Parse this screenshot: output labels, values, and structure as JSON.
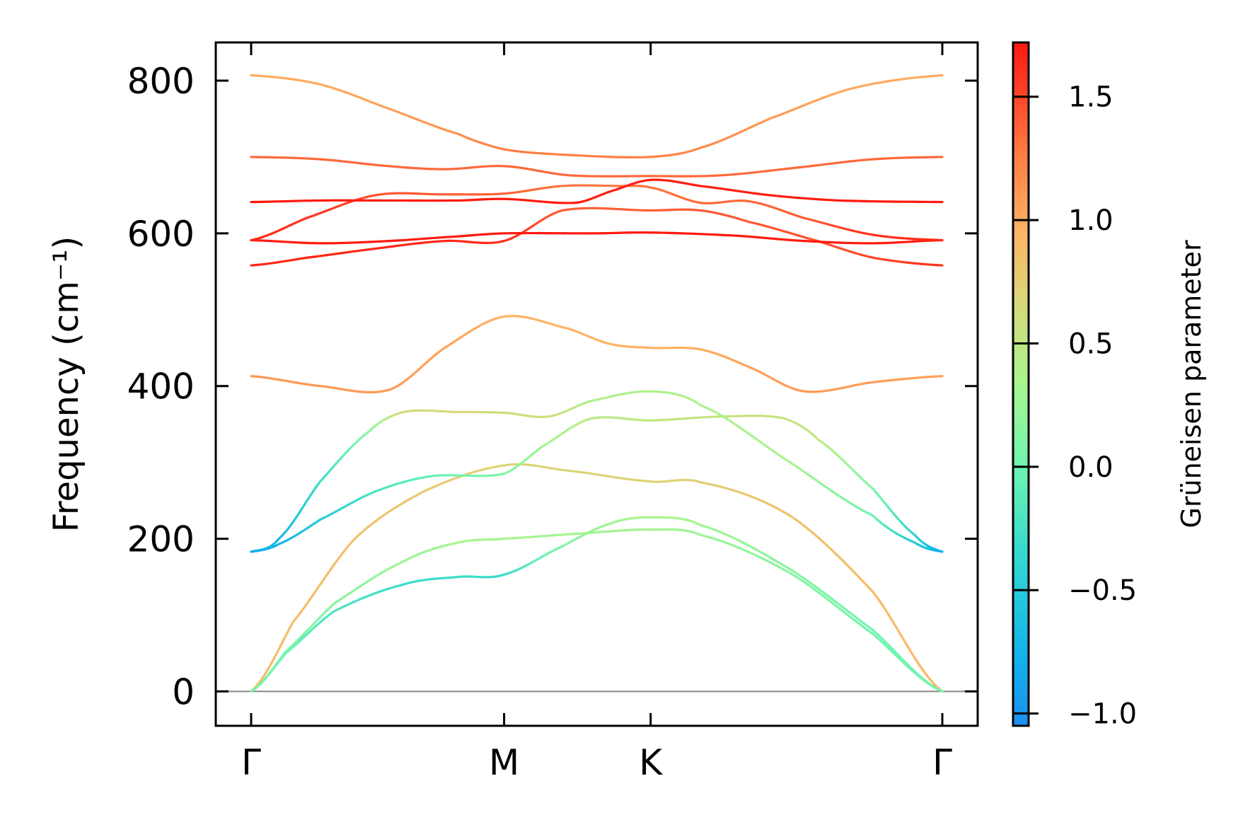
{
  "chart_data": {
    "type": "line",
    "title": "",
    "xlabel": "",
    "ylabel": "Frequency (cm⁻¹)",
    "ylim": [
      -45,
      850
    ],
    "yticks": [
      0,
      200,
      400,
      600,
      800
    ],
    "ytick_labels": [
      "0",
      "200",
      "400",
      "600",
      "800"
    ],
    "zero_line": true,
    "grid": false,
    "x_points": [
      {
        "label": "Γ",
        "x": 0.0
      },
      {
        "label": "M",
        "x": 0.366
      },
      {
        "label": "K",
        "x": 0.578
      },
      {
        "label": "Γ",
        "x": 1.0
      }
    ],
    "colorbar": {
      "label": "Grüneisen parameter",
      "colormap": "rainbow",
      "range": [
        -1.05,
        1.72
      ],
      "ticks": [
        -1.0,
        -0.5,
        0.0,
        0.5,
        1.0,
        1.5
      ],
      "tick_labels": [
        "−1.0",
        "−0.5",
        "0.0",
        "0.5",
        "1.0",
        "1.5"
      ]
    },
    "series": [
      {
        "points": [
          [
            0,
            0,
            0.9
          ],
          [
            0.06,
            90,
            0.88
          ],
          [
            0.15,
            200,
            0.85
          ],
          [
            0.25,
            262,
            0.8
          ],
          [
            0.366,
            296,
            0.7
          ],
          [
            0.45,
            290,
            0.7
          ],
          [
            0.578,
            275,
            0.7
          ],
          [
            0.65,
            274,
            0.72
          ],
          [
            0.78,
            230,
            0.85
          ],
          [
            0.9,
            130,
            0.9
          ],
          [
            1.0,
            0,
            0.92
          ]
        ]
      },
      {
        "points": [
          [
            0,
            0,
            0.02
          ],
          [
            0.05,
            50,
            -0.05
          ],
          [
            0.12,
            105,
            -0.2
          ],
          [
            0.22,
            140,
            -0.3
          ],
          [
            0.3,
            150,
            -0.3
          ],
          [
            0.366,
            153,
            -0.32
          ],
          [
            0.45,
            190,
            0.1
          ],
          [
            0.52,
            220,
            0.3
          ],
          [
            0.578,
            228,
            0.35
          ],
          [
            0.65,
            218,
            0.3
          ],
          [
            0.78,
            160,
            0.15
          ],
          [
            0.9,
            80,
            0.0
          ],
          [
            1.0,
            0,
            -0.02
          ]
        ]
      },
      {
        "points": [
          [
            0,
            0,
            0.05
          ],
          [
            0.05,
            52,
            0.05
          ],
          [
            0.12,
            115,
            0.15
          ],
          [
            0.22,
            170,
            0.25
          ],
          [
            0.3,
            195,
            0.32
          ],
          [
            0.366,
            200,
            0.32
          ],
          [
            0.48,
            207,
            0.3
          ],
          [
            0.578,
            212,
            0.32
          ],
          [
            0.65,
            205,
            0.28
          ],
          [
            0.78,
            155,
            0.15
          ],
          [
            0.9,
            75,
            0.0
          ],
          [
            1.0,
            0,
            0.05
          ]
        ]
      },
      {
        "points": [
          [
            0,
            183,
            -0.85
          ],
          [
            0.04,
            193,
            -0.75
          ],
          [
            0.1,
            225,
            -0.5
          ],
          [
            0.18,
            262,
            -0.2
          ],
          [
            0.26,
            282,
            -0.05
          ],
          [
            0.366,
            285,
            0.1
          ],
          [
            0.42,
            320,
            0.3
          ],
          [
            0.49,
            357,
            0.45
          ],
          [
            0.578,
            355,
            0.5
          ],
          [
            0.68,
            360,
            0.55
          ],
          [
            0.77,
            358,
            0.55
          ],
          [
            0.82,
            330,
            0.5
          ],
          [
            0.9,
            265,
            0.1
          ],
          [
            0.96,
            205,
            -0.4
          ],
          [
            1.0,
            183,
            -0.85
          ]
        ]
      },
      {
        "points": [
          [
            0,
            183,
            -0.8
          ],
          [
            0.04,
            200,
            -0.7
          ],
          [
            0.1,
            275,
            -0.3
          ],
          [
            0.17,
            340,
            0.15
          ],
          [
            0.22,
            366,
            0.65
          ],
          [
            0.3,
            366,
            0.65
          ],
          [
            0.366,
            365,
            0.62
          ],
          [
            0.43,
            360,
            0.6
          ],
          [
            0.49,
            380,
            0.4
          ],
          [
            0.578,
            393,
            0.38
          ],
          [
            0.65,
            375,
            0.38
          ],
          [
            0.78,
            300,
            0.35
          ],
          [
            0.9,
            230,
            0.0
          ],
          [
            0.96,
            195,
            -0.5
          ],
          [
            1.0,
            183,
            -0.8
          ]
        ]
      },
      {
        "points": [
          [
            0,
            413,
            1.1
          ],
          [
            0.1,
            400,
            1.1
          ],
          [
            0.2,
            395,
            1.1
          ],
          [
            0.28,
            450,
            1.05
          ],
          [
            0.366,
            491,
            0.95
          ],
          [
            0.46,
            475,
            0.95
          ],
          [
            0.52,
            455,
            0.95
          ],
          [
            0.578,
            450,
            0.95
          ],
          [
            0.65,
            448,
            0.98
          ],
          [
            0.72,
            425,
            1.05
          ],
          [
            0.8,
            393,
            1.1
          ],
          [
            0.9,
            405,
            1.08
          ],
          [
            1.0,
            413,
            1.05
          ]
        ]
      },
      {
        "points": [
          [
            0,
            558,
            1.65
          ],
          [
            0.08,
            568,
            1.65
          ],
          [
            0.18,
            580,
            1.65
          ],
          [
            0.28,
            590,
            1.65
          ],
          [
            0.366,
            590,
            1.62
          ],
          [
            0.45,
            630,
            1.4
          ],
          [
            0.578,
            630,
            1.4
          ],
          [
            0.65,
            630,
            1.42
          ],
          [
            0.72,
            615,
            1.42
          ],
          [
            0.82,
            590,
            1.45
          ],
          [
            0.9,
            568,
            1.5
          ],
          [
            1.0,
            558,
            1.6
          ]
        ]
      },
      {
        "points": [
          [
            0,
            591,
            1.72
          ],
          [
            0.1,
            587,
            1.72
          ],
          [
            0.2,
            590,
            1.72
          ],
          [
            0.3,
            596,
            1.72
          ],
          [
            0.366,
            600,
            1.72
          ],
          [
            0.5,
            600,
            1.72
          ],
          [
            0.578,
            601,
            1.72
          ],
          [
            0.7,
            597,
            1.72
          ],
          [
            0.8,
            590,
            1.72
          ],
          [
            0.9,
            587,
            1.7
          ],
          [
            1.0,
            591,
            1.7
          ]
        ]
      },
      {
        "points": [
          [
            0,
            591,
            1.65
          ],
          [
            0.08,
            620,
            1.6
          ],
          [
            0.18,
            650,
            1.45
          ],
          [
            0.28,
            651,
            1.4
          ],
          [
            0.366,
            652,
            1.38
          ],
          [
            0.45,
            662,
            1.3
          ],
          [
            0.53,
            662,
            1.3
          ],
          [
            0.578,
            660,
            1.3
          ],
          [
            0.65,
            640,
            1.35
          ],
          [
            0.72,
            642,
            1.35
          ],
          [
            0.8,
            620,
            1.4
          ],
          [
            0.9,
            598,
            1.6
          ],
          [
            1.0,
            591,
            1.65
          ]
        ]
      },
      {
        "points": [
          [
            0,
            641,
            1.72
          ],
          [
            0.1,
            643,
            1.72
          ],
          [
            0.2,
            643,
            1.72
          ],
          [
            0.3,
            643,
            1.72
          ],
          [
            0.366,
            645,
            1.72
          ],
          [
            0.47,
            640,
            1.72
          ],
          [
            0.52,
            655,
            1.7
          ],
          [
            0.578,
            670,
            1.7
          ],
          [
            0.65,
            662,
            1.7
          ],
          [
            0.75,
            650,
            1.7
          ],
          [
            0.85,
            643,
            1.72
          ],
          [
            1.0,
            641,
            1.72
          ]
        ]
      },
      {
        "points": [
          [
            0,
            700,
            1.35
          ],
          [
            0.1,
            697,
            1.35
          ],
          [
            0.2,
            688,
            1.35
          ],
          [
            0.28,
            684,
            1.35
          ],
          [
            0.366,
            688,
            1.35
          ],
          [
            0.46,
            676,
            1.35
          ],
          [
            0.578,
            675,
            1.35
          ],
          [
            0.68,
            676,
            1.35
          ],
          [
            0.8,
            687,
            1.35
          ],
          [
            0.9,
            697,
            1.35
          ],
          [
            1.0,
            700,
            1.35
          ]
        ]
      },
      {
        "points": [
          [
            0,
            807,
            1.0
          ],
          [
            0.1,
            795,
            1.0
          ],
          [
            0.2,
            763,
            1.05
          ],
          [
            0.3,
            730,
            1.15
          ],
          [
            0.366,
            710,
            1.25
          ],
          [
            0.45,
            703,
            1.25
          ],
          [
            0.578,
            700,
            1.25
          ],
          [
            0.65,
            712,
            1.2
          ],
          [
            0.75,
            750,
            1.1
          ],
          [
            0.87,
            790,
            1.0
          ],
          [
            1.0,
            807,
            1.0
          ]
        ]
      }
    ]
  }
}
